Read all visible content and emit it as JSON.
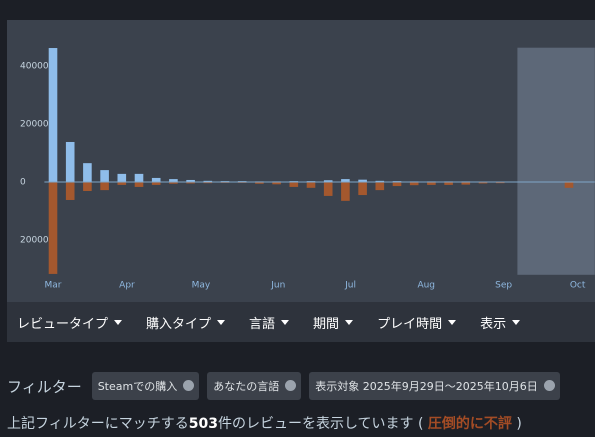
{
  "chart_data": {
    "type": "bar",
    "x": [
      0,
      1,
      2,
      3,
      4,
      5,
      6,
      7,
      8,
      9,
      10,
      11,
      12,
      13,
      14,
      15,
      16,
      17,
      18,
      19,
      20,
      21,
      22,
      23,
      24,
      25,
      26,
      27,
      28,
      29,
      30
    ],
    "xlim": [
      -0.5,
      31.5
    ],
    "xticks": [
      {
        "value": 0,
        "label": "Mar"
      },
      {
        "value": 4.3,
        "label": "Apr"
      },
      {
        "value": 8.6,
        "label": "May"
      },
      {
        "value": 13.1,
        "label": "Jun"
      },
      {
        "value": 17.3,
        "label": "Jul"
      },
      {
        "value": 21.7,
        "label": "Aug"
      },
      {
        "value": 26.2,
        "label": "Sep"
      },
      {
        "value": 30.5,
        "label": "Oct"
      }
    ],
    "ylim": [
      -32000,
      47000
    ],
    "yticks": [
      40000,
      20000,
      0,
      {
        "value": -20000,
        "label": "20000"
      }
    ],
    "highlight_range": [
      27.0,
      31.5
    ],
    "series": [
      {
        "color": "#8fbdea",
        "values": [
          46200,
          13800,
          6500,
          4100,
          2800,
          2800,
          1400,
          1000,
          700,
          400,
          300,
          300,
          200,
          200,
          300,
          300,
          600,
          1000,
          800,
          400,
          300,
          200,
          200,
          200,
          200,
          100,
          100,
          100,
          100,
          100,
          100
        ]
      },
      {
        "color": "#a4582e",
        "values": [
          -31700,
          -6200,
          -3100,
          -2800,
          -1000,
          -1700,
          -1000,
          -600,
          -500,
          -400,
          -300,
          -300,
          -600,
          -800,
          -1700,
          -2000,
          -4800,
          -6500,
          -4500,
          -2800,
          -1400,
          -1100,
          -1000,
          -1000,
          -900,
          -500,
          -400,
          -100,
          -100,
          -100,
          -2000
        ]
      }
    ]
  },
  "menu": [
    "レビュータイプ",
    "購入タイプ",
    "言語",
    "期間",
    "プレイ時間",
    "表示"
  ],
  "filters": {
    "label": "フィルター",
    "chips": [
      "Steamでの購入",
      "あなたの言語",
      "表示対象 2025年9月29日～2025年10月6日"
    ]
  },
  "summary": {
    "before": "上記フィルターにマッチする",
    "count": "503",
    "after": "件のレビューを表示しています (",
    "rating": "圧倒的に不評",
    "close": ")"
  }
}
